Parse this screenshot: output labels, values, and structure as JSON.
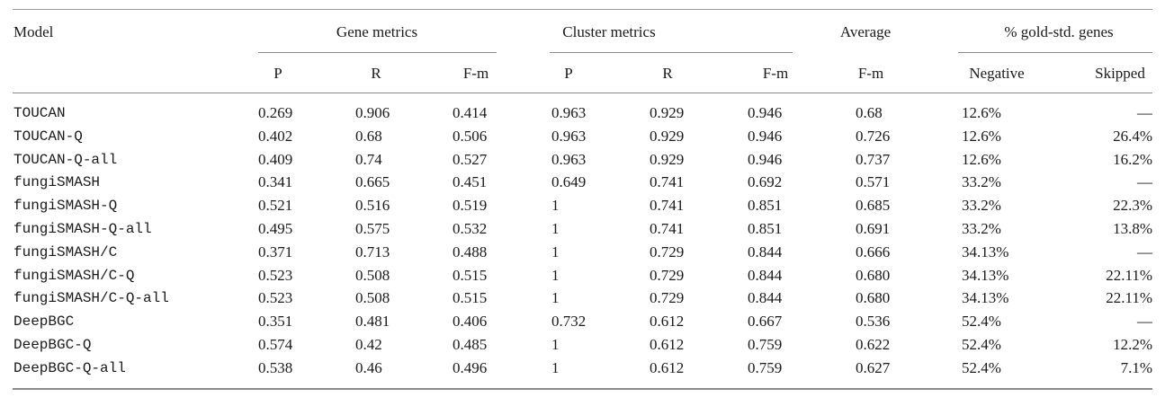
{
  "header": {
    "model": "Model",
    "gene_metrics": "Gene metrics",
    "cluster_metrics": "Cluster metrics",
    "average": "Average",
    "gold_std": "% gold-std. genes",
    "sub": [
      "P",
      "R",
      "F-m",
      "P",
      "R",
      "F-m",
      "F-m",
      "Negative",
      "Skipped"
    ]
  },
  "rows": [
    [
      "TOUCAN",
      "0.269",
      "0.906",
      "0.414",
      "0.963",
      "0.929",
      "0.946",
      "0.68",
      "12.6%",
      "—"
    ],
    [
      "TOUCAN-Q",
      "0.402",
      "0.68",
      "0.506",
      "0.963",
      "0.929",
      "0.946",
      "0.726",
      "12.6%",
      "26.4%"
    ],
    [
      "TOUCAN-Q-all",
      "0.409",
      "0.74",
      "0.527",
      "0.963",
      "0.929",
      "0.946",
      "0.737",
      "12.6%",
      "16.2%"
    ],
    [
      "fungiSMASH",
      "0.341",
      "0.665",
      "0.451",
      "0.649",
      "0.741",
      "0.692",
      "0.571",
      "33.2%",
      "—"
    ],
    [
      "fungiSMASH-Q",
      "0.521",
      "0.516",
      "0.519",
      "1",
      "0.741",
      "0.851",
      "0.685",
      "33.2%",
      "22.3%"
    ],
    [
      "fungiSMASH-Q-all",
      "0.495",
      "0.575",
      "0.532",
      "1",
      "0.741",
      "0.851",
      "0.691",
      "33.2%",
      "13.8%"
    ],
    [
      "fungiSMASH/C",
      "0.371",
      "0.713",
      "0.488",
      "1",
      "0.729",
      "0.844",
      "0.666",
      "34.13%",
      "—"
    ],
    [
      "fungiSMASH/C-Q",
      "0.523",
      "0.508",
      "0.515",
      "1",
      "0.729",
      "0.844",
      "0.680",
      "34.13%",
      "22.11%"
    ],
    [
      "fungiSMASH/C-Q-all",
      "0.523",
      "0.508",
      "0.515",
      "1",
      "0.729",
      "0.844",
      "0.680",
      "34.13%",
      "22.11%"
    ],
    [
      "DeepBGC",
      "0.351",
      "0.481",
      "0.406",
      "0.732",
      "0.612",
      "0.667",
      "0.536",
      "52.4%",
      "—"
    ],
    [
      "DeepBGC-Q",
      "0.574",
      "0.42",
      "0.485",
      "1",
      "0.612",
      "0.759",
      "0.622",
      "52.4%",
      "12.2%"
    ],
    [
      "DeepBGC-Q-all",
      "0.538",
      "0.46",
      "0.496",
      "1",
      "0.612",
      "0.759",
      "0.627",
      "52.4%",
      "7.1%"
    ]
  ]
}
